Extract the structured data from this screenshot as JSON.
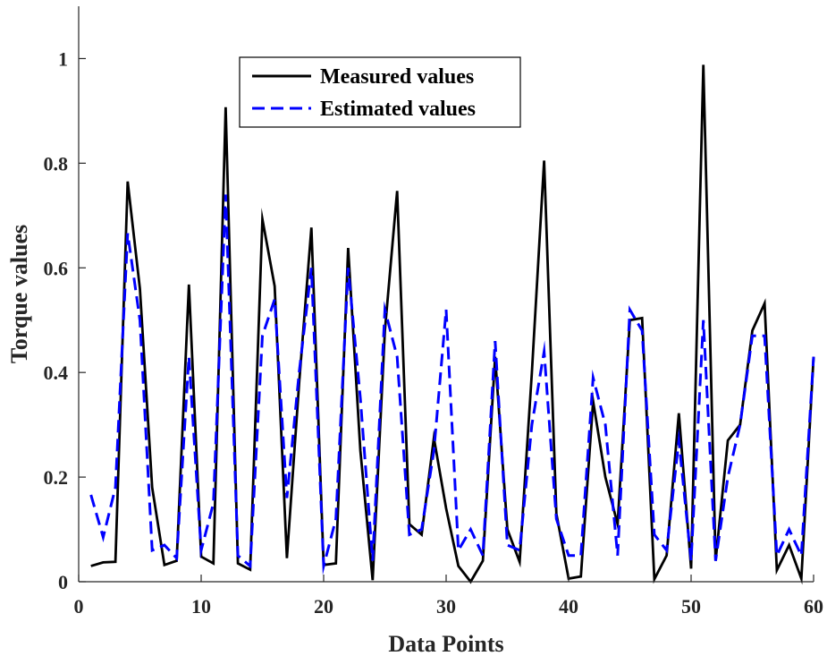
{
  "chart_data": {
    "type": "line",
    "xlabel": "Data Points",
    "ylabel": "Torque values",
    "xlim": [
      0,
      60
    ],
    "ylim": [
      0,
      1.1
    ],
    "xticks": [
      0,
      10,
      20,
      30,
      40,
      50,
      60
    ],
    "yticks": [
      0,
      0.2,
      0.4,
      0.6,
      0.8,
      1
    ],
    "x": [
      1,
      2,
      3,
      4,
      5,
      6,
      7,
      8,
      9,
      10,
      11,
      12,
      13,
      14,
      15,
      16,
      17,
      18,
      19,
      20,
      21,
      22,
      23,
      24,
      25,
      26,
      27,
      28,
      29,
      30,
      31,
      32,
      33,
      34,
      35,
      36,
      37,
      38,
      39,
      40,
      41,
      42,
      43,
      44,
      45,
      46,
      47,
      48,
      49,
      50,
      51,
      52,
      53,
      54,
      55,
      56,
      57,
      58,
      59,
      60
    ],
    "series": [
      {
        "name": "Measured values",
        "color": "#000000",
        "dash": "solid",
        "values": [
          0.03,
          0.037,
          0.038,
          0.765,
          0.56,
          0.18,
          0.032,
          0.04,
          0.568,
          0.048,
          0.035,
          0.907,
          0.035,
          0.023,
          0.693,
          0.565,
          0.045,
          0.38,
          0.677,
          0.032,
          0.035,
          0.638,
          0.25,
          0.003,
          0.48,
          0.747,
          0.11,
          0.09,
          0.275,
          0.14,
          0.03,
          0.0,
          0.04,
          0.43,
          0.1,
          0.038,
          0.4,
          0.805,
          0.13,
          0.006,
          0.01,
          0.345,
          0.2,
          0.11,
          0.5,
          0.504,
          0.005,
          0.05,
          0.322,
          0.025,
          0.988,
          0.04,
          0.27,
          0.3,
          0.48,
          0.532,
          0.022,
          0.07,
          0.006,
          0.43
        ]
      },
      {
        "name": "Estimated values",
        "color": "#0000ff",
        "dash": "dashed",
        "values": [
          0.166,
          0.085,
          0.18,
          0.666,
          0.5,
          0.06,
          0.07,
          0.045,
          0.43,
          0.06,
          0.15,
          0.74,
          0.05,
          0.03,
          0.47,
          0.54,
          0.16,
          0.4,
          0.6,
          0.03,
          0.12,
          0.6,
          0.35,
          0.04,
          0.52,
          0.43,
          0.09,
          0.1,
          0.25,
          0.52,
          0.06,
          0.1,
          0.05,
          0.46,
          0.07,
          0.06,
          0.3,
          0.44,
          0.12,
          0.05,
          0.05,
          0.39,
          0.3,
          0.05,
          0.52,
          0.48,
          0.09,
          0.06,
          0.27,
          0.04,
          0.5,
          0.04,
          0.2,
          0.3,
          0.47,
          0.47,
          0.05,
          0.1,
          0.05,
          0.43
        ]
      }
    ],
    "legend": {
      "position": "top-left",
      "entries": [
        "Measured values",
        "Estimated values"
      ]
    }
  }
}
